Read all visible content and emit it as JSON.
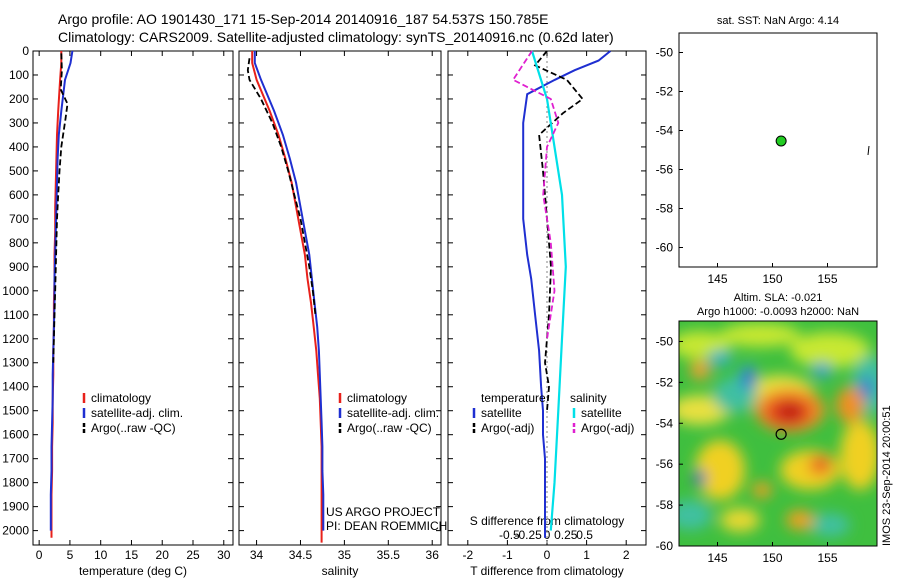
{
  "header": {
    "line1": "Argo profile: AO 1901430_171 15-Sep-2014 20140916_187 54.537S 150.785E",
    "line2": "Climatology: CARS2009. Satellite-adjusted climatology: synTS_20140916.nc (0.62d later)"
  },
  "colors": {
    "climatology": "#e8211b",
    "satellite": "#1f2fd1",
    "argo": "#000000",
    "s_satellite": "#00e0e8",
    "s_argo": "#e020d0"
  },
  "depth_ticks": [
    0,
    100,
    200,
    300,
    400,
    500,
    600,
    700,
    800,
    900,
    1000,
    1100,
    1200,
    1300,
    1400,
    1500,
    1600,
    1700,
    1800,
    1900,
    2000
  ],
  "chart_data": [
    {
      "type": "line",
      "xlabel": "temperature (deg C)",
      "xlim": [
        -1,
        31.5
      ],
      "ylim": [
        2060,
        0
      ],
      "x_ticks": [
        "0",
        "5",
        "10",
        "15",
        "20",
        "25",
        "30"
      ],
      "legend": [
        "climatology",
        "satellite-adj. clim.",
        "Argo(..raw -QC)"
      ],
      "series": [
        {
          "name": "climatology",
          "x": [
            3.6,
            3.6,
            3.4,
            3.1,
            2.9,
            2.8,
            2.7,
            2.6,
            2.6,
            2.5,
            2.5,
            2.4,
            2.4,
            2.3,
            2.3,
            2.2,
            2.2,
            2.1,
            2.1,
            2.0,
            2.0
          ],
          "y": [
            0,
            50,
            120,
            250,
            350,
            450,
            550,
            650,
            750,
            850,
            950,
            1050,
            1150,
            1250,
            1350,
            1450,
            1550,
            1650,
            1750,
            1850,
            2030
          ]
        },
        {
          "name": "satellite-adj. clim.",
          "x": [
            5.4,
            5.1,
            4.2,
            3.6,
            3.2,
            3.0,
            2.9,
            2.8,
            2.7,
            2.6,
            2.5,
            2.5,
            2.4,
            2.3,
            2.2,
            2.2,
            2.1,
            2.0,
            2.0,
            1.9,
            1.9
          ],
          "y": [
            0,
            50,
            120,
            250,
            350,
            450,
            550,
            650,
            750,
            850,
            950,
            1050,
            1150,
            1250,
            1350,
            1450,
            1550,
            1650,
            1750,
            1850,
            2000
          ]
        },
        {
          "name": "Argo(..raw -QC)",
          "x": [
            3.6,
            3.7,
            3.5,
            4.6,
            4.3,
            3.6,
            3.3,
            3.1,
            2.9,
            2.8,
            2.7,
            2.6,
            2.5,
            2.4,
            2.3
          ],
          "y": [
            10,
            80,
            160,
            220,
            280,
            400,
            500,
            600,
            700,
            800,
            900,
            1000,
            1100,
            1200,
            1300
          ]
        }
      ]
    },
    {
      "type": "line",
      "xlabel": "salinity",
      "xlim": [
        33.8,
        36.1
      ],
      "ylim": [
        2060,
        0
      ],
      "x_ticks": [
        "34",
        "34.5",
        "35",
        "35.5",
        "36"
      ],
      "legend": [
        "climatology",
        "satellite-adj. clim.",
        "Argo(..raw -QC)"
      ],
      "annotations": [
        "US ARGO PROJECT",
        "PI: DEAN ROEMMICH"
      ],
      "series": [
        {
          "name": "climatology",
          "x": [
            33.95,
            33.95,
            34.0,
            34.15,
            34.25,
            34.33,
            34.4,
            34.45,
            34.5,
            34.55,
            34.58,
            34.62,
            34.65,
            34.68,
            34.7,
            34.72,
            34.73,
            34.74,
            34.74,
            34.74,
            34.74
          ],
          "y": [
            0,
            50,
            120,
            250,
            350,
            450,
            550,
            650,
            750,
            850,
            950,
            1050,
            1150,
            1250,
            1350,
            1450,
            1550,
            1650,
            1750,
            1850,
            2050
          ]
        },
        {
          "name": "satellite-adj. clim.",
          "x": [
            33.98,
            33.98,
            34.05,
            34.2,
            34.3,
            34.38,
            34.45,
            34.5,
            34.55,
            34.6,
            34.63,
            34.66,
            34.69,
            34.71,
            34.72,
            34.73,
            34.74,
            34.75,
            34.75,
            34.76,
            34.76
          ],
          "y": [
            0,
            50,
            120,
            250,
            350,
            450,
            550,
            650,
            750,
            850,
            950,
            1050,
            1150,
            1250,
            1350,
            1450,
            1550,
            1650,
            1750,
            1850,
            2000
          ]
        },
        {
          "name": "Argo(..raw -QC)",
          "x": [
            33.92,
            33.9,
            33.92,
            34.05,
            34.18,
            34.28,
            34.36,
            34.43,
            34.5,
            34.55,
            34.6,
            34.64,
            34.67
          ],
          "y": [
            30,
            80,
            120,
            200,
            300,
            400,
            500,
            600,
            700,
            800,
            900,
            1000,
            1100
          ]
        }
      ]
    },
    {
      "type": "line",
      "xlabel": "T difference from climatology",
      "xlabel2": "S difference from climatology",
      "xlim": [
        -2.5,
        2.5
      ],
      "ylim": [
        2060,
        0
      ],
      "x_ticks": [
        "-2",
        "-1",
        "0",
        "1",
        "2"
      ],
      "s_ticks": [
        "-0.5",
        "-0.25",
        "0",
        "0.25",
        "0.5"
      ],
      "legend_titles": [
        "temperature",
        "salinity"
      ],
      "legend": [
        "satellite",
        "Argo(-adj)",
        "satellite",
        "Argo(-adj)"
      ],
      "series": [
        {
          "name": "T satellite",
          "x": [
            1.6,
            1.3,
            0.7,
            0.2,
            -0.5,
            -0.6,
            -0.6,
            -0.6,
            -0.5,
            -0.4,
            -0.3,
            -0.2,
            -0.15,
            -0.1,
            -0.1,
            -0.05,
            -0.05,
            -0.05,
            -0.05
          ],
          "y": [
            0,
            40,
            80,
            120,
            180,
            300,
            500,
            700,
            850,
            950,
            1100,
            1250,
            1400,
            1500,
            1600,
            1700,
            1800,
            1900,
            2030
          ]
        },
        {
          "name": "T Argo(-adj)",
          "x": [
            0.0,
            -0.3,
            0.5,
            0.9,
            0.4,
            -0.2,
            -0.1,
            0.0,
            0.1,
            0.05,
            0.0,
            -0.05,
            0.05,
            0.0
          ],
          "y": [
            0,
            60,
            120,
            200,
            260,
            350,
            500,
            700,
            900,
            1100,
            1200,
            1300,
            1400,
            1500
          ]
        },
        {
          "name": "S satellite",
          "x": [
            -0.2,
            -0.1,
            0.0,
            0.1,
            0.2,
            0.25,
            0.2,
            0.15,
            0.1,
            0.05
          ],
          "y": [
            0,
            100,
            200,
            400,
            600,
            900,
            1200,
            1500,
            1800,
            2000
          ]
        },
        {
          "name": "S Argo(-adj)",
          "x": [
            -0.2,
            -0.45,
            0.05,
            0.15,
            0.0,
            -0.05,
            0.05,
            0.1,
            0.0
          ],
          "y": [
            0,
            120,
            200,
            300,
            400,
            600,
            800,
            1000,
            1200
          ]
        }
      ]
    },
    {
      "type": "scatter",
      "title": "sat. SST: NaN Argo: 4.14",
      "xlim": [
        141.5,
        159.5
      ],
      "ylim": [
        -61,
        -49
      ],
      "x_ticks": [
        "145",
        "150",
        "155"
      ],
      "y_ticks": [
        "-50",
        "-52",
        "-54",
        "-56",
        "-58",
        "-60"
      ],
      "point": [
        150.785,
        -54.537
      ]
    },
    {
      "type": "heatmap",
      "title": "Altim. SLA: -0.021",
      "subtitle": "Argo h1000: -0.0093 h2000: NaN",
      "xlim": [
        141.5,
        159.5
      ],
      "ylim": [
        -60,
        -49
      ],
      "x_ticks": [
        "145",
        "150",
        "155"
      ],
      "y_ticks": [
        "-50",
        "-52",
        "-54",
        "-56",
        "-58",
        "-60"
      ],
      "point": [
        150.785,
        -54.537
      ],
      "side_label": "IMOS 23-Sep-2014 20:00:51"
    }
  ]
}
